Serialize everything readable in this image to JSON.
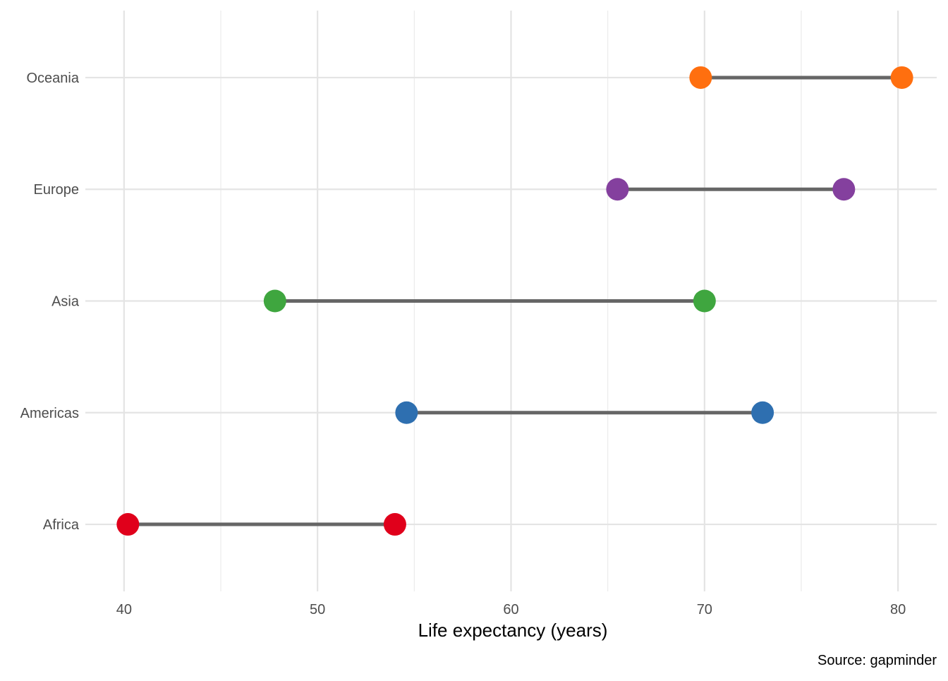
{
  "chart_data": {
    "type": "dumbbell",
    "xlabel": "Life expectancy (years)",
    "ylabel": "",
    "caption": "Source: gapminder",
    "xlim": [
      38,
      82
    ],
    "x_ticks": [
      40,
      50,
      60,
      70,
      80
    ],
    "x_minor_ticks": [
      45,
      55,
      65,
      75
    ],
    "grid": true,
    "connector_color": "#666666",
    "categories": [
      "Africa",
      "Americas",
      "Asia",
      "Europe",
      "Oceania"
    ],
    "series": [
      {
        "category": "Africa",
        "start": 40.2,
        "end": 54.0,
        "color": "#e0001b"
      },
      {
        "category": "Americas",
        "start": 54.6,
        "end": 73.0,
        "color": "#2e6fb0"
      },
      {
        "category": "Asia",
        "start": 47.8,
        "end": 70.0,
        "color": "#3fa63f"
      },
      {
        "category": "Europe",
        "start": 65.5,
        "end": 77.2,
        "color": "#84409e"
      },
      {
        "category": "Oceania",
        "start": 69.8,
        "end": 80.2,
        "color": "#ff6f0f"
      }
    ]
  }
}
